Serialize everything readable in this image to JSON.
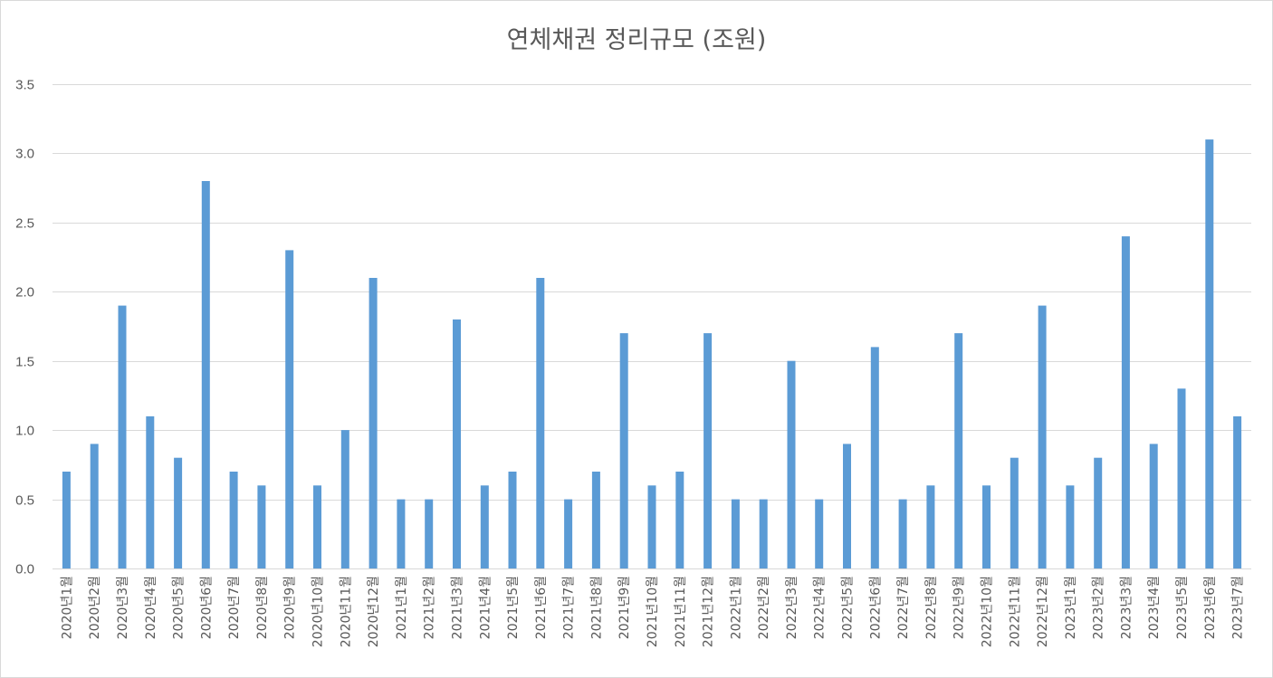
{
  "chart_data": {
    "type": "bar",
    "title": "연체채권 정리규모 (조원)",
    "xlabel": "",
    "ylabel": "",
    "ylim": [
      0,
      3.5
    ],
    "yticks": [
      "0.0",
      "0.5",
      "1.0",
      "1.5",
      "2.0",
      "2.5",
      "3.0",
      "3.5"
    ],
    "grid": true,
    "legend": "none",
    "bar_color": "#5b9bd5",
    "categories": [
      "2020년1월",
      "2020년2월",
      "2020년3월",
      "2020년4월",
      "2020년5월",
      "2020년6월",
      "2020년7월",
      "2020년8월",
      "2020년9월",
      "2020년10월",
      "2020년11월",
      "2020년12월",
      "2021년1월",
      "2021년2월",
      "2021년3월",
      "2021년4월",
      "2021년5월",
      "2021년6월",
      "2021년7월",
      "2021년8월",
      "2021년9월",
      "2021년10월",
      "2021년11월",
      "2021년12월",
      "2022년1월",
      "2022년2월",
      "2022년3월",
      "2022년4월",
      "2022년5월",
      "2022년6월",
      "2022년7월",
      "2022년8월",
      "2022년9월",
      "2022년10월",
      "2022년11월",
      "2022년12월",
      "2023년1월",
      "2023년2월",
      "2023년3월",
      "2023년4월",
      "2023년5월",
      "2023년6월",
      "2023년7월"
    ],
    "values": [
      0.7,
      0.9,
      1.9,
      1.1,
      0.8,
      2.8,
      0.7,
      0.6,
      2.3,
      0.6,
      1.0,
      2.1,
      0.5,
      0.5,
      1.8,
      0.6,
      0.7,
      2.1,
      0.5,
      0.7,
      1.7,
      0.6,
      0.7,
      1.7,
      0.5,
      0.5,
      1.5,
      0.5,
      0.9,
      1.6,
      0.5,
      0.6,
      1.7,
      0.6,
      0.8,
      1.9,
      0.6,
      0.8,
      2.4,
      0.9,
      1.3,
      3.1,
      1.1
    ]
  }
}
